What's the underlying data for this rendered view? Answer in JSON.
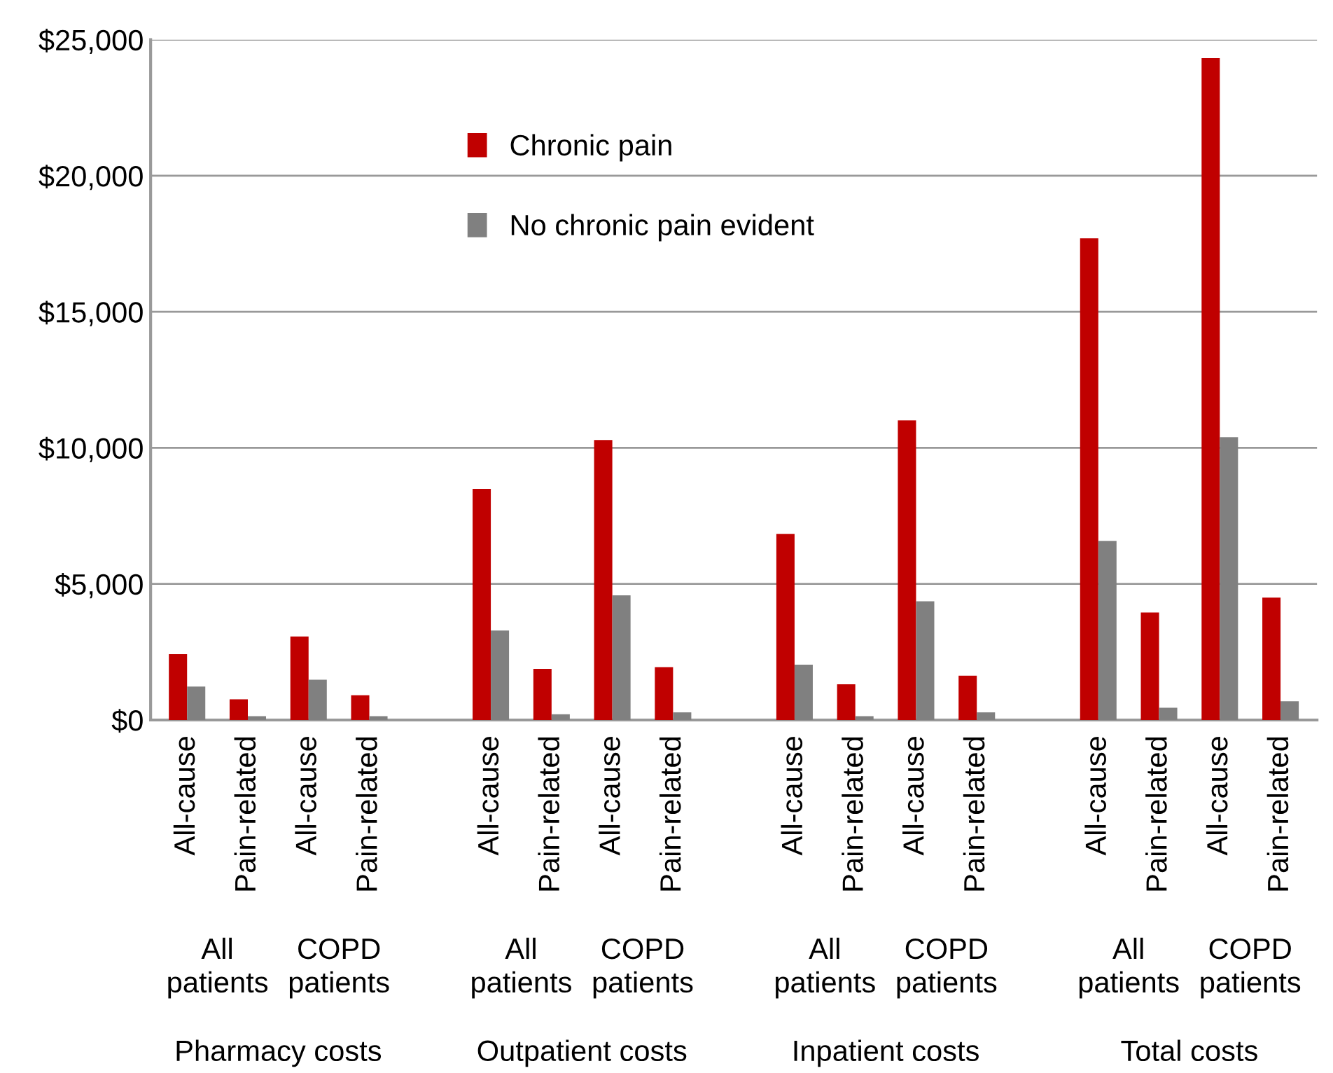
{
  "chart_data": {
    "type": "bar",
    "categories": [
      "All-cause",
      "Pain-related",
      "All-cause",
      "Pain-related",
      null,
      "All-cause",
      "Pain-related",
      "All-cause",
      "Pain-related",
      null,
      "All-cause",
      "Pain-related",
      "All-cause",
      "Pain-related",
      null,
      "All-cause",
      "Pain-related",
      "All-cause",
      "Pain-related"
    ],
    "series": [
      {
        "name": "Chronic pain",
        "color": "#c00000",
        "values": [
          2420,
          760,
          3070,
          910,
          null,
          8490,
          1880,
          10290,
          1940,
          null,
          6840,
          1310,
          11010,
          1630,
          null,
          17700,
          3950,
          24320,
          4500
        ]
      },
      {
        "name": "No chronic pain evident",
        "color": "#808080",
        "values": [
          1230,
          140,
          1480,
          140,
          null,
          3290,
          210,
          4580,
          280,
          null,
          2030,
          140,
          4360,
          280,
          null,
          6580,
          450,
          10390,
          690
        ]
      }
    ],
    "annotations": [
      "All\npatients",
      "COPD\npatients",
      "All\npatients",
      "COPD\npatients",
      "All\npatients",
      "COPD\npatients",
      "All\npatients",
      "COPD\npatients",
      "Pharmacy costs",
      "Outpatient costs",
      "Inpatient costs",
      "Total costs"
    ],
    "ylim": [
      0,
      25000
    ],
    "yticks": [
      {
        "value": 0,
        "label": "$0"
      },
      {
        "value": 5000,
        "label": "$5,000"
      },
      {
        "value": 10000,
        "label": "$10,000"
      },
      {
        "value": 15000,
        "label": "$15,000"
      },
      {
        "value": 20000,
        "label": "$20,000"
      },
      {
        "value": 25000,
        "label": "$25,000"
      }
    ],
    "grid": "y",
    "legend": "top left"
  }
}
